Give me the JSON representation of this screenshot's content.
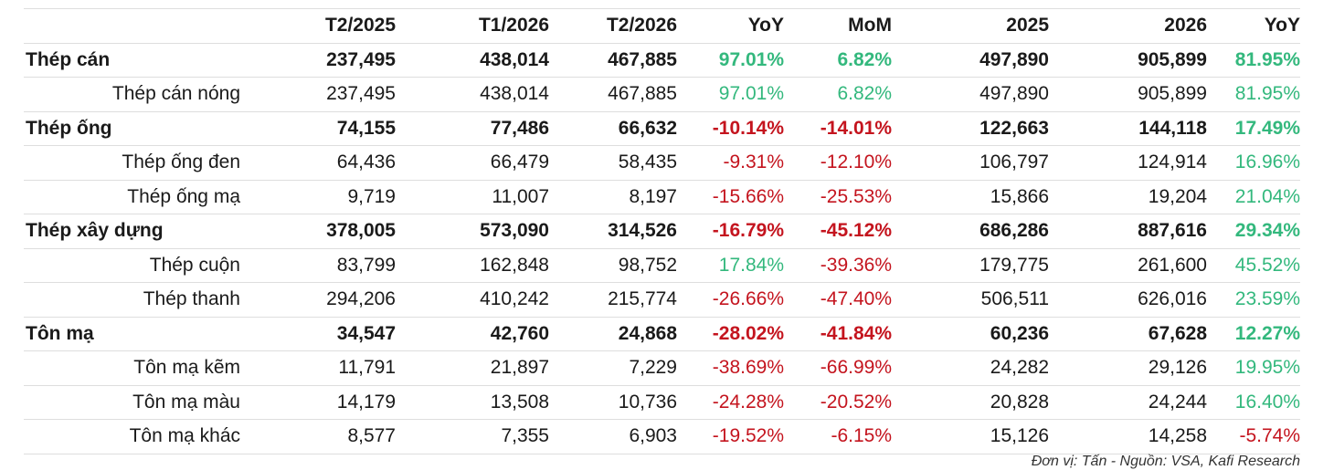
{
  "columns": [
    "",
    "T2/2025",
    "T1/2026",
    "T2/2026",
    "YoY",
    "MoM",
    "2025",
    "2026",
    "YoY"
  ],
  "rows": [
    {
      "type": "group",
      "cells": [
        "Thép cán",
        "237,495",
        "438,014",
        "467,885",
        "97.01%",
        "6.82%",
        "497,890",
        "905,899",
        "81.95%"
      ]
    },
    {
      "type": "sub",
      "cells": [
        "Thép cán nóng",
        "237,495",
        "438,014",
        "467,885",
        "97.01%",
        "6.82%",
        "497,890",
        "905,899",
        "81.95%"
      ]
    },
    {
      "type": "group",
      "cells": [
        "Thép ống",
        "74,155",
        "77,486",
        "66,632",
        "-10.14%",
        "-14.01%",
        "122,663",
        "144,118",
        "17.49%"
      ]
    },
    {
      "type": "sub",
      "cells": [
        "Thép ống đen",
        "64,436",
        "66,479",
        "58,435",
        "-9.31%",
        "-12.10%",
        "106,797",
        "124,914",
        "16.96%"
      ]
    },
    {
      "type": "sub",
      "cells": [
        "Thép ống mạ",
        "9,719",
        "11,007",
        "8,197",
        "-15.66%",
        "-25.53%",
        "15,866",
        "19,204",
        "21.04%"
      ]
    },
    {
      "type": "group",
      "cells": [
        "Thép xây dựng",
        "378,005",
        "573,090",
        "314,526",
        "-16.79%",
        "-45.12%",
        "686,286",
        "887,616",
        "29.34%"
      ]
    },
    {
      "type": "sub",
      "cells": [
        "Thép cuộn",
        "83,799",
        "162,848",
        "98,752",
        "17.84%",
        "-39.36%",
        "179,775",
        "261,600",
        "45.52%"
      ]
    },
    {
      "type": "sub",
      "cells": [
        "Thép thanh",
        "294,206",
        "410,242",
        "215,774",
        "-26.66%",
        "-47.40%",
        "506,511",
        "626,016",
        "23.59%"
      ]
    },
    {
      "type": "group",
      "cells": [
        "Tôn mạ",
        "34,547",
        "42,760",
        "24,868",
        "-28.02%",
        "-41.84%",
        "60,236",
        "67,628",
        "12.27%"
      ]
    },
    {
      "type": "sub",
      "cells": [
        "Tôn mạ kẽm",
        "11,791",
        "21,897",
        "7,229",
        "-38.69%",
        "-66.99%",
        "24,282",
        "29,126",
        "19.95%"
      ]
    },
    {
      "type": "sub",
      "cells": [
        "Tôn mạ màu",
        "14,179",
        "13,508",
        "10,736",
        "-24.28%",
        "-20.52%",
        "20,828",
        "24,244",
        "16.40%"
      ]
    },
    {
      "type": "sub",
      "cells": [
        "Tôn mạ khác",
        "8,577",
        "7,355",
        "6,903",
        "-19.52%",
        "-6.15%",
        "15,126",
        "14,258",
        "-5.74%"
      ]
    }
  ],
  "source_note": "Đơn vị: Tấn - Nguồn: VSA, Kafi Research",
  "colors": {
    "positive": "#33b87d",
    "negative": "#c4141e"
  }
}
